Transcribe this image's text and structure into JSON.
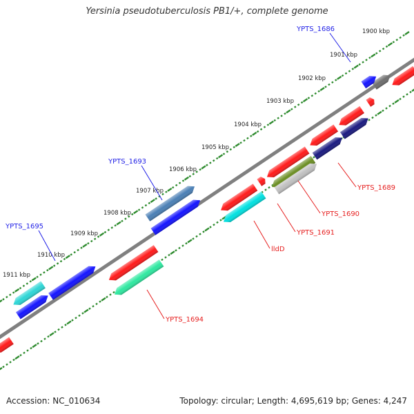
{
  "title": "Yersinia pseudotuberculosis PB1/+, complete genome",
  "footer": {
    "accession": "Accession: NC_010634",
    "summary": "Topology: circular; Length: 4,695,619 bp; Genes: 4,247"
  },
  "ruler_labels": [
    "1900 kbp",
    "1901 kbp",
    "1902 kbp",
    "1903 kbp",
    "1904 kbp",
    "1905 kbp",
    "1906 kbp",
    "1907 kbp",
    "1908 kbp",
    "1909 kbp",
    "1910 kbp",
    "1911 kbp"
  ],
  "gene_labels": {
    "forward": [
      "YPTS_1686",
      "YPTS_1693",
      "YPTS_1695"
    ],
    "reverse": [
      "YPTS_1689",
      "YPTS_1690",
      "YPTS_1691",
      "lldD",
      "YPTS_1694"
    ]
  },
  "colors": {
    "backbone": "#808080",
    "tick": "#2e8b2e",
    "forward_label": "#1e1ee6",
    "reverse_label": "#e61e1e",
    "red": "#ff1a1a",
    "blue": "#1414ff",
    "gray": "#6e6e6e",
    "navy": "#1a1a80",
    "steelblue": "#4a7fb5",
    "cyan": "#00e0e0",
    "lightcyan": "#2dd6d6",
    "olive": "#6b8e23",
    "silver": "#c0c0c0",
    "aquamarine": "#2ee8a0"
  }
}
